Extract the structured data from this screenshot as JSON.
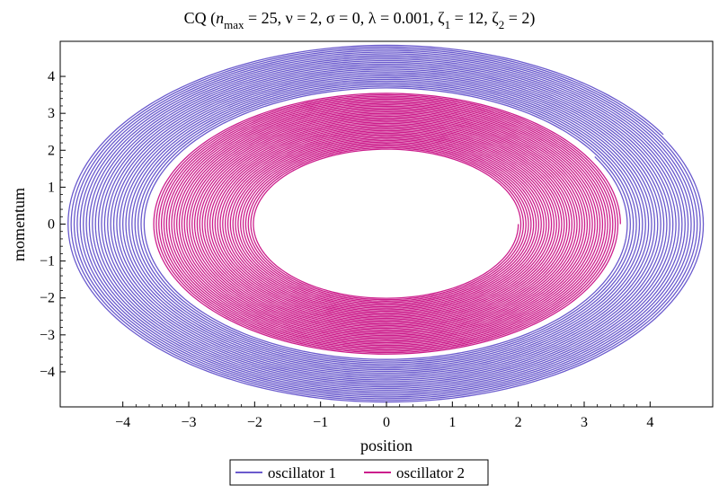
{
  "chart_data": {
    "type": "line",
    "title": {
      "prefix": "CQ  (",
      "n_symbol": "n",
      "n_sub": "max",
      "n_value": " = 25, ν = 2, σ = 0, λ = 0.001, ζ",
      "z1_sub": "1",
      "z1_value": " = 12, ζ",
      "z2_sub": "2",
      "z2_value": " = 2)"
    },
    "xlabel": "position",
    "ylabel": "momentum",
    "xlim": [
      -4.95,
      4.95
    ],
    "ylim": [
      -4.95,
      4.95
    ],
    "xticks": [
      -4,
      -3,
      -2,
      -1,
      0,
      1,
      2,
      3,
      4
    ],
    "yticks": [
      -4,
      -3,
      -2,
      -1,
      0,
      1,
      2,
      3,
      4
    ],
    "xtick_labels": [
      "−4",
      "−3",
      "−2",
      "−1",
      "0",
      "1",
      "2",
      "3",
      "4"
    ],
    "ytick_labels": [
      "−4",
      "−3",
      "−2",
      "−1",
      "0",
      "1",
      "2",
      "3",
      "4"
    ],
    "grid": false,
    "legend_position": "bottom-center",
    "series": [
      {
        "name": "oscillator 1",
        "color": "#6a5acd",
        "shape": "spiral",
        "outer_radius": 4.85,
        "inner_radius": 3.65,
        "turns": 26,
        "start_angle_deg": 30
      },
      {
        "name": "oscillator 2",
        "color": "#cc1e8c",
        "shape": "spiral",
        "outer_radius": 3.55,
        "inner_radius": 2.0,
        "turns": 40,
        "start_angle_deg": 0
      }
    ]
  }
}
